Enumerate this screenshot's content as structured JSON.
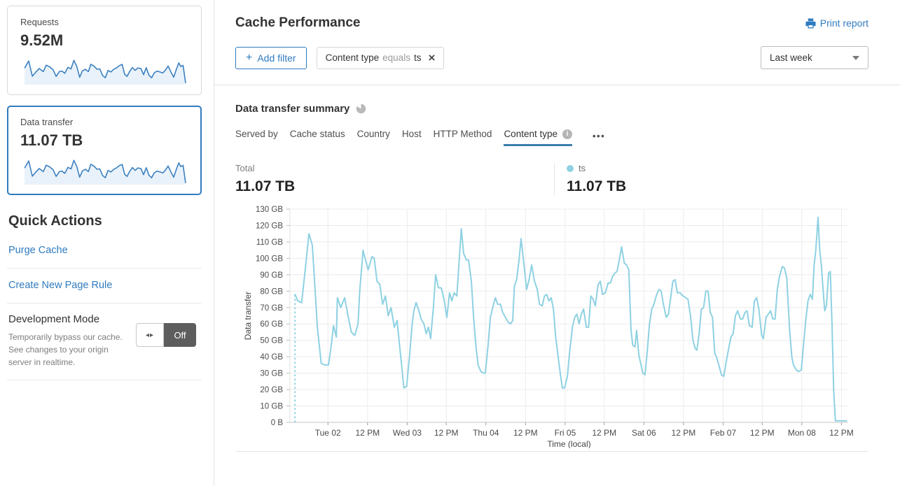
{
  "colors": {
    "accent": "#2f7bbf",
    "tab_underline": "#3a7fab",
    "spark_stroke": "#3c80c0",
    "spark_fill": "#e9f2fa",
    "selected_card_border": "#2f7cc0"
  },
  "sidebar": {
    "cards": [
      {
        "title": "Requests",
        "value": "9.52M",
        "selected": false
      },
      {
        "title": "Data transfer",
        "value": "11.07 TB",
        "selected": true
      }
    ],
    "quick_actions": {
      "heading": "Quick Actions",
      "links": [
        "Purge Cache",
        "Create New Page Rule"
      ]
    },
    "dev_mode": {
      "title": "Development Mode",
      "description": "Temporarily bypass our cache. See changes to your origin server in realtime.",
      "toggle_arrows": "◂▸",
      "toggle_label": "Off"
    }
  },
  "header": {
    "title": "Cache Performance",
    "print_label": "Print report",
    "add_filter_label": "Add filter",
    "add_filter_plus": "+",
    "filter_chip": {
      "field": "Content type",
      "operator": "equals",
      "value": "ts",
      "close": "×"
    },
    "time_range": "Last week"
  },
  "summary": {
    "heading": "Data transfer summary",
    "tabs": [
      {
        "label": "Served by"
      },
      {
        "label": "Cache status"
      },
      {
        "label": "Country"
      },
      {
        "label": "Host"
      },
      {
        "label": "HTTP Method"
      },
      {
        "label": "Content type",
        "info": true,
        "active": true
      }
    ],
    "more_label": "•••",
    "total": {
      "label": "Total",
      "value": "11.07 TB"
    },
    "legend": {
      "name": "ts",
      "value": "11.07 TB"
    }
  },
  "chart_data": {
    "type": "line",
    "xlabel": "Time (local)",
    "ylabel": "Data transfer",
    "ylim": [
      0,
      130
    ],
    "grid": true,
    "y_ticks": [
      {
        "v": 0,
        "label": "0 B"
      },
      {
        "v": 10,
        "label": "10 GB"
      },
      {
        "v": 20,
        "label": "20 GB"
      },
      {
        "v": 30,
        "label": "30 GB"
      },
      {
        "v": 40,
        "label": "40 GB"
      },
      {
        "v": 50,
        "label": "50 GB"
      },
      {
        "v": 60,
        "label": "60 GB"
      },
      {
        "v": 70,
        "label": "70 GB"
      },
      {
        "v": 80,
        "label": "80 GB"
      },
      {
        "v": 90,
        "label": "90 GB"
      },
      {
        "v": 100,
        "label": "100 GB"
      },
      {
        "v": 110,
        "label": "110 GB"
      },
      {
        "v": 120,
        "label": "120 GB"
      },
      {
        "v": 130,
        "label": "130 GB"
      }
    ],
    "x_ticks": [
      {
        "f": 0.068,
        "label": "Tue 02"
      },
      {
        "f": 0.139,
        "label": "12 PM"
      },
      {
        "f": 0.21,
        "label": "Wed 03"
      },
      {
        "f": 0.28,
        "label": "12 PM"
      },
      {
        "f": 0.351,
        "label": "Thu 04"
      },
      {
        "f": 0.422,
        "label": "12 PM"
      },
      {
        "f": 0.493,
        "label": "Fri 05"
      },
      {
        "f": 0.563,
        "label": "12 PM"
      },
      {
        "f": 0.634,
        "label": "Sat 06"
      },
      {
        "f": 0.705,
        "label": "12 PM"
      },
      {
        "f": 0.776,
        "label": "Feb 07"
      },
      {
        "f": 0.846,
        "label": "12 PM"
      },
      {
        "f": 0.917,
        "label": "Mon 08"
      },
      {
        "f": 0.988,
        "label": "12 PM"
      }
    ],
    "series": [
      {
        "name": "ts",
        "unit": "GB",
        "color": "#8ed1e2",
        "dashed_start": true,
        "points": [
          [
            0.009,
            78
          ],
          [
            0.014,
            74
          ],
          [
            0.021,
            73
          ],
          [
            0.027,
            92
          ],
          [
            0.034,
            115
          ],
          [
            0.04,
            108
          ],
          [
            0.043,
            92
          ],
          [
            0.049,
            58
          ],
          [
            0.056,
            36
          ],
          [
            0.062,
            35
          ],
          [
            0.069,
            35
          ],
          [
            0.074,
            47
          ],
          [
            0.078,
            59
          ],
          [
            0.083,
            52
          ],
          [
            0.085,
            76
          ],
          [
            0.091,
            70
          ],
          [
            0.098,
            76
          ],
          [
            0.104,
            65
          ],
          [
            0.11,
            55
          ],
          [
            0.116,
            53
          ],
          [
            0.122,
            60
          ],
          [
            0.125,
            80
          ],
          [
            0.131,
            105
          ],
          [
            0.136,
            98
          ],
          [
            0.14,
            93
          ],
          [
            0.147,
            101
          ],
          [
            0.151,
            100
          ],
          [
            0.156,
            86
          ],
          [
            0.161,
            84
          ],
          [
            0.166,
            72
          ],
          [
            0.171,
            77
          ],
          [
            0.176,
            65
          ],
          [
            0.181,
            70
          ],
          [
            0.187,
            58
          ],
          [
            0.192,
            62
          ],
          [
            0.196,
            48
          ],
          [
            0.2,
            35
          ],
          [
            0.204,
            21
          ],
          [
            0.209,
            22
          ],
          [
            0.214,
            40
          ],
          [
            0.219,
            60
          ],
          [
            0.222,
            68
          ],
          [
            0.226,
            73
          ],
          [
            0.231,
            68
          ],
          [
            0.235,
            63
          ],
          [
            0.24,
            60
          ],
          [
            0.244,
            54
          ],
          [
            0.248,
            58
          ],
          [
            0.252,
            51
          ],
          [
            0.257,
            70
          ],
          [
            0.261,
            90
          ],
          [
            0.266,
            82
          ],
          [
            0.271,
            82
          ],
          [
            0.276,
            75
          ],
          [
            0.281,
            64
          ],
          [
            0.286,
            79
          ],
          [
            0.29,
            74
          ],
          [
            0.294,
            79
          ],
          [
            0.299,
            77
          ],
          [
            0.303,
            98
          ],
          [
            0.307,
            118
          ],
          [
            0.311,
            103
          ],
          [
            0.316,
            99
          ],
          [
            0.32,
            99
          ],
          [
            0.325,
            86
          ],
          [
            0.329,
            64
          ],
          [
            0.333,
            47
          ],
          [
            0.337,
            35
          ],
          [
            0.342,
            31
          ],
          [
            0.347,
            30
          ],
          [
            0.35,
            30
          ],
          [
            0.355,
            47
          ],
          [
            0.359,
            64
          ],
          [
            0.364,
            71
          ],
          [
            0.368,
            76
          ],
          [
            0.372,
            72
          ],
          [
            0.377,
            72
          ],
          [
            0.381,
            67
          ],
          [
            0.386,
            64
          ],
          [
            0.391,
            61
          ],
          [
            0.395,
            60
          ],
          [
            0.399,
            62
          ],
          [
            0.402,
            83
          ],
          [
            0.406,
            87
          ],
          [
            0.41,
            98
          ],
          [
            0.414,
            112
          ],
          [
            0.419,
            97
          ],
          [
            0.424,
            81
          ],
          [
            0.429,
            88
          ],
          [
            0.433,
            96
          ],
          [
            0.438,
            86
          ],
          [
            0.443,
            81
          ],
          [
            0.447,
            72
          ],
          [
            0.452,
            71
          ],
          [
            0.456,
            77
          ],
          [
            0.46,
            78
          ],
          [
            0.464,
            74
          ],
          [
            0.468,
            76
          ],
          [
            0.472,
            69
          ],
          [
            0.476,
            52
          ],
          [
            0.48,
            41
          ],
          [
            0.485,
            28
          ],
          [
            0.488,
            21
          ],
          [
            0.492,
            21
          ],
          [
            0.497,
            28
          ],
          [
            0.501,
            43
          ],
          [
            0.506,
            58
          ],
          [
            0.51,
            64
          ],
          [
            0.514,
            66
          ],
          [
            0.518,
            60
          ],
          [
            0.522,
            66
          ],
          [
            0.526,
            69
          ],
          [
            0.531,
            58
          ],
          [
            0.535,
            58
          ],
          [
            0.539,
            77
          ],
          [
            0.543,
            75
          ],
          [
            0.547,
            71
          ],
          [
            0.552,
            84
          ],
          [
            0.556,
            86
          ],
          [
            0.56,
            78
          ],
          [
            0.565,
            79
          ],
          [
            0.57,
            85
          ],
          [
            0.574,
            85
          ],
          [
            0.578,
            89
          ],
          [
            0.582,
            91
          ],
          [
            0.586,
            92
          ],
          [
            0.59,
            99
          ],
          [
            0.594,
            107
          ],
          [
            0.599,
            97
          ],
          [
            0.603,
            96
          ],
          [
            0.607,
            93
          ],
          [
            0.611,
            56
          ],
          [
            0.614,
            47
          ],
          [
            0.618,
            46
          ],
          [
            0.621,
            56
          ],
          [
            0.625,
            41
          ],
          [
            0.629,
            35
          ],
          [
            0.632,
            30
          ],
          [
            0.636,
            29
          ],
          [
            0.64,
            43
          ],
          [
            0.644,
            60
          ],
          [
            0.648,
            69
          ],
          [
            0.652,
            72
          ],
          [
            0.657,
            78
          ],
          [
            0.661,
            81
          ],
          [
            0.665,
            80
          ],
          [
            0.669,
            72
          ],
          [
            0.674,
            64
          ],
          [
            0.678,
            66
          ],
          [
            0.682,
            76
          ],
          [
            0.686,
            86
          ],
          [
            0.69,
            87
          ],
          [
            0.694,
            79
          ],
          [
            0.699,
            79
          ],
          [
            0.704,
            77
          ],
          [
            0.709,
            76
          ],
          [
            0.713,
            75
          ],
          [
            0.718,
            64
          ],
          [
            0.722,
            50
          ],
          [
            0.726,
            45
          ],
          [
            0.729,
            44
          ],
          [
            0.733,
            54
          ],
          [
            0.737,
            69
          ],
          [
            0.741,
            70
          ],
          [
            0.745,
            80
          ],
          [
            0.749,
            80
          ],
          [
            0.753,
            67
          ],
          [
            0.757,
            64
          ],
          [
            0.761,
            42
          ],
          [
            0.764,
            40
          ],
          [
            0.769,
            34
          ],
          [
            0.773,
            29
          ],
          [
            0.777,
            28
          ],
          [
            0.782,
            38
          ],
          [
            0.786,
            45
          ],
          [
            0.79,
            52
          ],
          [
            0.794,
            54
          ],
          [
            0.798,
            65
          ],
          [
            0.802,
            68
          ],
          [
            0.807,
            63
          ],
          [
            0.811,
            63
          ],
          [
            0.815,
            67
          ],
          [
            0.819,
            68
          ],
          [
            0.823,
            59
          ],
          [
            0.828,
            58
          ],
          [
            0.832,
            74
          ],
          [
            0.836,
            76
          ],
          [
            0.84,
            69
          ],
          [
            0.845,
            53
          ],
          [
            0.848,
            51
          ],
          [
            0.853,
            64
          ],
          [
            0.857,
            66
          ],
          [
            0.861,
            68
          ],
          [
            0.865,
            63
          ],
          [
            0.869,
            63
          ],
          [
            0.873,
            81
          ],
          [
            0.877,
            89
          ],
          [
            0.882,
            95
          ],
          [
            0.886,
            94
          ],
          [
            0.89,
            88
          ],
          [
            0.895,
            57
          ],
          [
            0.899,
            40
          ],
          [
            0.902,
            35
          ],
          [
            0.907,
            32
          ],
          [
            0.911,
            31
          ],
          [
            0.916,
            32
          ],
          [
            0.92,
            47
          ],
          [
            0.924,
            62
          ],
          [
            0.928,
            74
          ],
          [
            0.932,
            78
          ],
          [
            0.936,
            75
          ],
          [
            0.939,
            96
          ],
          [
            0.942,
            105
          ],
          [
            0.946,
            125
          ],
          [
            0.949,
            105
          ],
          [
            0.952,
            96
          ],
          [
            0.954,
            86
          ],
          [
            0.958,
            68
          ],
          [
            0.961,
            71
          ],
          [
            0.965,
            91
          ],
          [
            0.968,
            92
          ],
          [
            0.971,
            60
          ],
          [
            0.974,
            20
          ],
          [
            0.977,
            1
          ],
          [
            0.983,
            1
          ],
          [
            0.99,
            1
          ],
          [
            0.997,
            1
          ]
        ]
      }
    ]
  }
}
